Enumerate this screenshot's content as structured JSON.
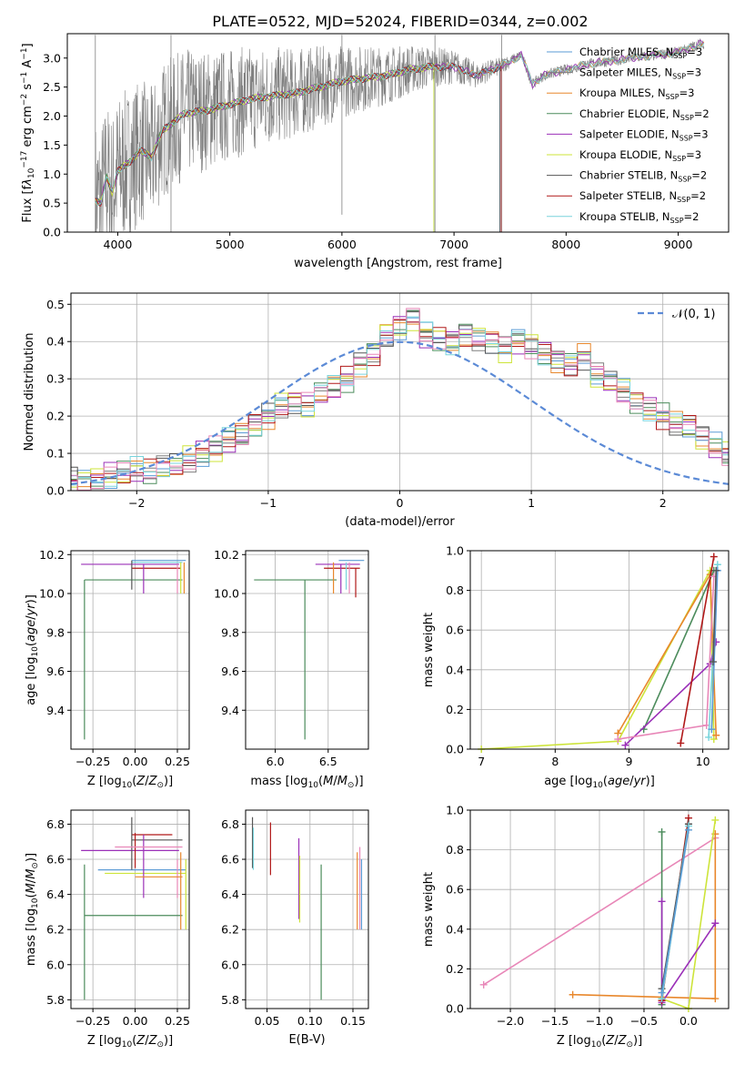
{
  "figure": {
    "title": "PLATE=0522, MJD=52024, FIBERID=0344, z=0.002"
  },
  "colors": {
    "spectrum": "#808080",
    "models": [
      "#5b9bd5",
      "#7f7f7f",
      "#e8872b",
      "#4c8c5c",
      "#9b30b8",
      "#cde43a",
      "#555555",
      "#b01818",
      "#78d4dc"
    ],
    "extra": [
      "#e887b8"
    ],
    "gaussian": "#5b8ad6"
  },
  "chart_data": [
    {
      "id": "spectrum",
      "type": "line",
      "xlabel": "wavelength [Angstrom, rest frame]",
      "ylabel_parts": [
        "Flux [f",
        "λ",
        "10",
        "−17",
        " erg cm",
        "−2",
        " s",
        "−1",
        " A",
        "−1",
        "]"
      ],
      "xlim": [
        3550,
        9450
      ],
      "ylim": [
        0,
        3.42
      ],
      "xticks": [
        4000,
        5000,
        6000,
        7000,
        8000,
        9000
      ],
      "yticks": [
        0.0,
        0.5,
        1.0,
        1.5,
        2.0,
        2.5,
        3.0
      ],
      "ytick_labels": [
        "0.0",
        "0.5",
        "1.0",
        "1.5",
        "2.0",
        "2.5",
        "3.0"
      ],
      "legend_position": "upper right",
      "legend": [
        {
          "name": "Chabrier MILES, N",
          "sub": "SSP",
          "tail": "=3"
        },
        {
          "name": "Salpeter MILES, N",
          "sub": "SSP",
          "tail": "=3"
        },
        {
          "name": "Kroupa MILES, N",
          "sub": "SSP",
          "tail": "=3"
        },
        {
          "name": "Chabrier ELODIE, N",
          "sub": "SSP",
          "tail": "=2"
        },
        {
          "name": "Salpeter ELODIE, N",
          "sub": "SSP",
          "tail": "=3"
        },
        {
          "name": "Kroupa ELODIE, N",
          "sub": "SSP",
          "tail": "=3"
        },
        {
          "name": "Chabrier STELIB, N",
          "sub": "SSP",
          "tail": "=2"
        },
        {
          "name": "Salpeter STELIB, N",
          "sub": "SSP",
          "tail": "=2"
        },
        {
          "name": "Kroupa STELIB, N",
          "sub": "SSP",
          "tail": "=2"
        }
      ],
      "model_curve": [
        [
          3800,
          0.55
        ],
        [
          3850,
          0.5
        ],
        [
          3900,
          0.95
        ],
        [
          3950,
          0.7
        ],
        [
          4000,
          1.05
        ],
        [
          4100,
          1.2
        ],
        [
          4200,
          1.4
        ],
        [
          4300,
          1.3
        ],
        [
          4400,
          1.75
        ],
        [
          4500,
          1.9
        ],
        [
          4600,
          2.05
        ],
        [
          4800,
          2.1
        ],
        [
          5000,
          2.2
        ],
        [
          5200,
          2.3
        ],
        [
          5400,
          2.35
        ],
        [
          5600,
          2.4
        ],
        [
          5800,
          2.5
        ],
        [
          6000,
          2.6
        ],
        [
          6200,
          2.65
        ],
        [
          6400,
          2.7
        ],
        [
          6600,
          2.8
        ],
        [
          6800,
          2.85
        ],
        [
          7000,
          2.85
        ],
        [
          7200,
          2.7
        ],
        [
          7400,
          2.85
        ],
        [
          7600,
          3.05
        ],
        [
          7700,
          2.55
        ],
        [
          7800,
          2.7
        ],
        [
          8000,
          2.8
        ],
        [
          8200,
          2.9
        ],
        [
          8400,
          2.95
        ],
        [
          8600,
          3.0
        ],
        [
          8800,
          3.05
        ],
        [
          9000,
          3.1
        ],
        [
          9200,
          3.25
        ]
      ],
      "model_ends": [
        7410,
        9230,
        9230,
        6820,
        9230,
        6820,
        7410,
        7420,
        9230
      ]
    },
    {
      "id": "residuals",
      "type": "histogram",
      "xlabel": "(data-model)/error",
      "ylabel": "Normed distribution",
      "xlim": [
        -2.5,
        2.5
      ],
      "ylim": [
        0,
        0.53
      ],
      "xticks": [
        -2,
        -1,
        0,
        1,
        2
      ],
      "xtick_labels": [
        "−2",
        "−1",
        "0",
        "1",
        "2"
      ],
      "yticks": [
        0.0,
        0.1,
        0.2,
        0.3,
        0.4,
        0.5
      ],
      "ytick_labels": [
        "0.0",
        "0.1",
        "0.2",
        "0.3",
        "0.4",
        "0.5"
      ],
      "legend": [
        "𝒩(0, 1)"
      ],
      "legend_position": "upper right",
      "bin_width": 0.1,
      "profile": [
        0.028,
        0.022,
        0.03,
        0.04,
        0.045,
        0.055,
        0.05,
        0.062,
        0.07,
        0.085,
        0.1,
        0.11,
        0.135,
        0.15,
        0.175,
        0.2,
        0.23,
        0.24,
        0.23,
        0.26,
        0.28,
        0.3,
        0.34,
        0.37,
        0.42,
        0.44,
        0.46,
        0.42,
        0.41,
        0.4,
        0.42,
        0.41,
        0.4,
        0.38,
        0.4,
        0.39,
        0.37,
        0.35,
        0.34,
        0.36,
        0.31,
        0.29,
        0.27,
        0.24,
        0.22,
        0.2,
        0.18,
        0.17,
        0.14,
        0.12,
        0.1,
        0.11,
        0.09,
        0.085,
        0.08,
        0.06,
        0.05,
        0.048,
        0.045,
        0.04,
        0.035,
        0.04,
        0.03,
        0.03,
        0.025,
        0.03,
        0.03,
        0.02,
        0.02,
        0.02,
        0.02
      ]
    },
    {
      "id": "age-vs-Z",
      "type": "scatter",
      "xlabel_parts": [
        "Z [log",
        "10",
        "(",
        "Z",
        "/",
        "Z",
        "⊙",
        ")]"
      ],
      "ylabel_parts": [
        "age  [log",
        "10",
        "(",
        "age",
        "/",
        "yr",
        ")]"
      ],
      "xlim": [
        -0.38,
        0.32
      ],
      "ylim": [
        9.2,
        10.22
      ],
      "xticks": [
        -0.25,
        0.0,
        0.25
      ],
      "xtick_labels": [
        "−0.25",
        "0.00",
        "0.25"
      ],
      "yticks": [
        9.4,
        9.6,
        9.8,
        10.0,
        10.2
      ],
      "ytick_labels": [
        "9.4",
        "9.6",
        "9.8",
        "10.0",
        "10.2"
      ],
      "segments": [
        [
          -0.3,
          10.07,
          -0.3,
          9.25,
          3
        ],
        [
          -0.3,
          10.07,
          0.28,
          10.07,
          3
        ],
        [
          -0.32,
          10.15,
          0.26,
          10.15,
          4
        ],
        [
          -0.02,
          10.17,
          0.3,
          10.17,
          0
        ],
        [
          -0.02,
          10.16,
          0.28,
          10.16,
          8
        ],
        [
          -0.02,
          10.13,
          0.27,
          10.13,
          7
        ],
        [
          0.05,
          10.15,
          0.05,
          10.0,
          4
        ],
        [
          0.25,
          10.15,
          0.25,
          10.0,
          9
        ],
        [
          0.27,
          10.16,
          0.27,
          10.0,
          5
        ],
        [
          0.29,
          10.16,
          0.29,
          10.0,
          2
        ],
        [
          -0.02,
          10.17,
          -0.02,
          10.02,
          6
        ]
      ]
    },
    {
      "id": "age-vs-mass",
      "type": "scatter",
      "xlabel_parts": [
        "mass [log",
        "10",
        "(",
        "M",
        "/",
        "M",
        "⊙",
        ")]"
      ],
      "xlim": [
        5.72,
        6.88
      ],
      "ylim": [
        9.2,
        10.22
      ],
      "xticks": [
        6.0,
        6.5
      ],
      "xtick_labels": [
        "6.0",
        "6.5"
      ],
      "yticks": [
        9.4,
        9.6,
        9.8,
        10.0,
        10.2
      ],
      "ytick_labels": [
        "9.4",
        "9.6",
        "9.8",
        "10.0",
        "10.2"
      ],
      "segments": [
        [
          5.8,
          10.07,
          6.58,
          10.07,
          3
        ],
        [
          6.28,
          10.07,
          6.28,
          9.25,
          3
        ],
        [
          6.38,
          10.15,
          6.8,
          10.15,
          4
        ],
        [
          6.6,
          10.17,
          6.84,
          10.17,
          0
        ],
        [
          6.46,
          10.13,
          6.8,
          10.13,
          7
        ],
        [
          6.62,
          10.15,
          6.62,
          10.0,
          4
        ],
        [
          6.7,
          10.16,
          6.7,
          10.0,
          9
        ],
        [
          6.76,
          10.13,
          6.76,
          9.98,
          7
        ],
        [
          6.55,
          10.16,
          6.55,
          10.0,
          2
        ],
        [
          6.67,
          10.16,
          6.67,
          10.02,
          8
        ]
      ]
    },
    {
      "id": "massweight-vs-age",
      "type": "line",
      "xlabel_parts": [
        "age  [log",
        "10",
        "(",
        "age",
        "/",
        "yr",
        ")]"
      ],
      "ylabel": "mass weight",
      "xlim": [
        6.85,
        10.35
      ],
      "ylim": [
        0,
        1.0
      ],
      "xticks": [
        7,
        8,
        9,
        10
      ],
      "xtick_labels": [
        "7",
        "8",
        "9",
        "10"
      ],
      "yticks": [
        0.0,
        0.2,
        0.4,
        0.6,
        0.8,
        1.0
      ],
      "ytick_labels": [
        "0.0",
        "0.2",
        "0.4",
        "0.6",
        "0.8",
        "1.0"
      ],
      "series": [
        {
          "color": 5,
          "points": [
            [
              7.0,
              0.0
            ],
            [
              8.85,
              0.04
            ],
            [
              10.1,
              0.9
            ],
            [
              10.15,
              0.05
            ]
          ]
        },
        {
          "color": 2,
          "points": [
            [
              8.85,
              0.08
            ],
            [
              10.1,
              0.88
            ],
            [
              10.18,
              0.07
            ]
          ]
        },
        {
          "color": 3,
          "points": [
            [
              9.2,
              0.1
            ],
            [
              10.15,
              0.9
            ]
          ]
        },
        {
          "color": 4,
          "points": [
            [
              8.95,
              0.02
            ],
            [
              10.1,
              0.43
            ],
            [
              10.18,
              0.54
            ]
          ]
        },
        {
          "color": 7,
          "points": [
            [
              9.7,
              0.03
            ],
            [
              10.15,
              0.97
            ]
          ]
        },
        {
          "color": 9,
          "points": [
            [
              8.85,
              0.05
            ],
            [
              10.05,
              0.12
            ],
            [
              10.15,
              0.87
            ]
          ]
        },
        {
          "color": 8,
          "points": [
            [
              10.08,
              0.06
            ],
            [
              10.2,
              0.93
            ]
          ]
        },
        {
          "color": 0,
          "points": [
            [
              10.12,
              0.1
            ],
            [
              10.2,
              0.9
            ]
          ]
        },
        {
          "color": 6,
          "points": [
            [
              10.14,
              0.44
            ],
            [
              10.18,
              0.9
            ]
          ]
        }
      ]
    },
    {
      "id": "mass-vs-Z",
      "type": "scatter",
      "xlabel_parts": [
        "Z [log",
        "10",
        "(",
        "Z",
        "/",
        "Z",
        "⊙",
        ")]"
      ],
      "ylabel_parts": [
        "mass [log",
        "10",
        "(",
        "M",
        "/",
        "M",
        "⊙",
        ")]"
      ],
      "xlim": [
        -0.38,
        0.32
      ],
      "ylim": [
        5.75,
        6.88
      ],
      "xticks": [
        -0.25,
        0.0,
        0.25
      ],
      "xtick_labels": [
        "−0.25",
        "0.00",
        "0.25"
      ],
      "yticks": [
        5.8,
        6.0,
        6.2,
        6.4,
        6.6,
        6.8
      ],
      "ytick_labels": [
        "5.8",
        "6.0",
        "6.2",
        "6.4",
        "6.6",
        "6.8"
      ],
      "segments": [
        [
          -0.3,
          6.28,
          0.28,
          6.28,
          3
        ],
        [
          -0.3,
          6.57,
          -0.3,
          5.8,
          3
        ],
        [
          -0.32,
          6.65,
          0.26,
          6.65,
          4
        ],
        [
          -0.22,
          6.54,
          0.3,
          6.54,
          0
        ],
        [
          -0.02,
          6.74,
          0.22,
          6.74,
          7
        ],
        [
          -0.18,
          6.52,
          0.3,
          6.52,
          5
        ],
        [
          -0.02,
          6.71,
          0.28,
          6.71,
          6
        ],
        [
          0.05,
          6.74,
          0.05,
          6.38,
          4
        ],
        [
          -0.02,
          6.84,
          -0.02,
          6.54,
          6
        ],
        [
          0.0,
          6.75,
          0.0,
          6.55,
          7
        ],
        [
          0.27,
          6.64,
          0.27,
          6.2,
          2
        ],
        [
          0.25,
          6.6,
          0.25,
          6.38,
          9
        ],
        [
          0.3,
          6.6,
          0.3,
          6.2,
          5
        ],
        [
          -0.12,
          6.67,
          0.28,
          6.67,
          9
        ],
        [
          0.0,
          6.5,
          0.28,
          6.5,
          2
        ]
      ]
    },
    {
      "id": "mass-vs-ebv",
      "type": "scatter",
      "xlabel": "E(B-V)",
      "xlim": [
        0.025,
        0.168
      ],
      "ylim": [
        5.75,
        6.88
      ],
      "xticks": [
        0.05,
        0.1,
        0.15
      ],
      "xtick_labels": [
        "0.05",
        "0.10",
        "0.15"
      ],
      "yticks": [
        5.8,
        6.0,
        6.2,
        6.4,
        6.6,
        6.8
      ],
      "ytick_labels": [
        "5.8",
        "6.0",
        "6.2",
        "6.4",
        "6.6",
        "6.8"
      ],
      "segments": [
        [
          0.033,
          6.84,
          0.033,
          6.55,
          6
        ],
        [
          0.034,
          6.78,
          0.034,
          6.54,
          8
        ],
        [
          0.054,
          6.81,
          0.054,
          6.51,
          7
        ],
        [
          0.087,
          6.72,
          0.087,
          6.26,
          4
        ],
        [
          0.088,
          6.62,
          0.088,
          6.24,
          5
        ],
        [
          0.113,
          6.57,
          0.113,
          5.8,
          3
        ],
        [
          0.155,
          6.64,
          0.155,
          6.2,
          2
        ],
        [
          0.158,
          6.67,
          0.158,
          6.2,
          9
        ],
        [
          0.16,
          6.6,
          0.16,
          6.2,
          0
        ]
      ]
    },
    {
      "id": "massweight-vs-Z",
      "type": "line",
      "xlabel_parts": [
        "Z [log",
        "10",
        "(",
        "Z",
        "/",
        "Z",
        "⊙",
        ")]"
      ],
      "ylabel": "mass weight",
      "xlim": [
        -2.45,
        0.45
      ],
      "ylim": [
        0,
        1.0
      ],
      "xticks": [
        -2.0,
        -1.5,
        -1.0,
        -0.5,
        0.0
      ],
      "xtick_labels": [
        "−2.0",
        "−1.5",
        "−1.0",
        "−0.5",
        "0.0"
      ],
      "yticks": [
        0.0,
        0.2,
        0.4,
        0.6,
        0.8,
        1.0
      ],
      "ytick_labels": [
        "0.0",
        "0.2",
        "0.4",
        "0.6",
        "0.8",
        "1.0"
      ],
      "series": [
        {
          "color": 9,
          "points": [
            [
              -2.3,
              0.12
            ],
            [
              0.3,
              0.86
            ]
          ]
        },
        {
          "color": 2,
          "points": [
            [
              -1.3,
              0.07
            ],
            [
              0.3,
              0.05
            ],
            [
              0.3,
              0.88
            ]
          ]
        },
        {
          "color": 5,
          "points": [
            [
              -0.3,
              0.05
            ],
            [
              0.0,
              0.0
            ],
            [
              0.3,
              0.95
            ]
          ]
        },
        {
          "color": 3,
          "points": [
            [
              -0.3,
              0.89
            ],
            [
              -0.3,
              0.02
            ]
          ]
        },
        {
          "color": 4,
          "points": [
            [
              -0.3,
              0.54
            ],
            [
              -0.3,
              0.03
            ],
            [
              0.3,
              0.43
            ]
          ]
        },
        {
          "color": 7,
          "points": [
            [
              -0.3,
              0.04
            ],
            [
              0.0,
              0.96
            ]
          ]
        },
        {
          "color": 6,
          "points": [
            [
              -0.3,
              0.1
            ],
            [
              0.0,
              0.93
            ]
          ]
        },
        {
          "color": 8,
          "points": [
            [
              -0.3,
              0.05
            ],
            [
              0.0,
              0.92
            ]
          ]
        },
        {
          "color": 0,
          "points": [
            [
              -0.3,
              0.08
            ],
            [
              0.0,
              0.9
            ]
          ]
        }
      ]
    }
  ]
}
